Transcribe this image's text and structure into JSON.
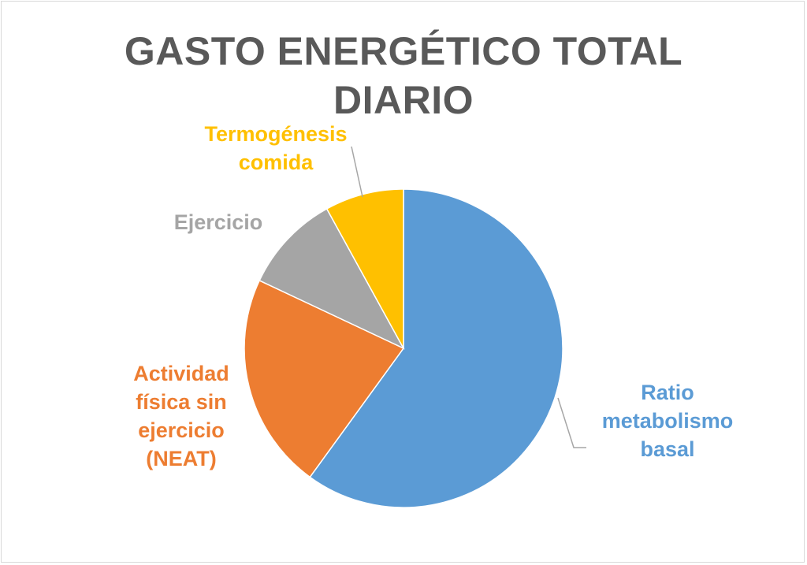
{
  "chart_data": {
    "type": "pie",
    "title_lines": [
      "GASTO ENERGÉTICO TOTAL",
      "DIARIO"
    ],
    "slices": [
      {
        "name_lines": [
          "Ratio",
          "metabolismo",
          "basal"
        ],
        "value": 60,
        "color": "#5b9bd5"
      },
      {
        "name_lines": [
          "Actividad",
          "física sin",
          "ejercicio",
          "(NEAT)"
        ],
        "value": 22,
        "color": "#ed7d31"
      },
      {
        "name_lines": [
          "Ejercicio"
        ],
        "value": 10,
        "color": "#a5a5a5"
      },
      {
        "name_lines": [
          "Termogénesis",
          "comida"
        ],
        "value": 8,
        "color": "#ffc000"
      }
    ],
    "legend": "none",
    "start_angle": "12 o'clock, clockwise"
  }
}
